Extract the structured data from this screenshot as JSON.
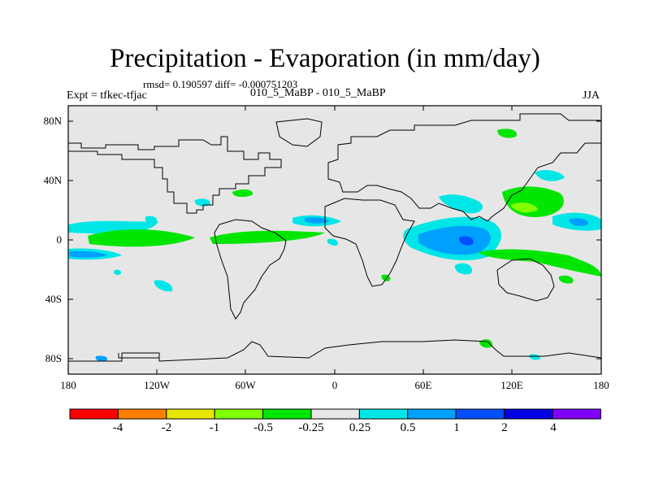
{
  "title": "Precipitation - Evaporation (in mm/day)",
  "stats": "rmsd= 0.190597 diff= -0.000751203",
  "experiment": "Expt = tfkec-tfjac",
  "case": "010_5_MaBP - 010_5_MaBP",
  "season": "JJA",
  "map": {
    "background_color": "#e6e6e6",
    "lat_ticks": [
      "80N",
      "40N",
      "0",
      "40S",
      "80S"
    ],
    "lon_ticks": [
      "180",
      "120W",
      "60W",
      "0",
      "60E",
      "120E",
      "180"
    ]
  },
  "colorbar": {
    "colors": [
      "#ff0000",
      "#ff8000",
      "#e6e600",
      "#80ff00",
      "#00e600",
      "#e6e6e6",
      "#00e6e6",
      "#00a0ff",
      "#0050ff",
      "#0000e6",
      "#8000ff"
    ],
    "labels": [
      "-4",
      "-2",
      "-1",
      "-0.5",
      "-0.25",
      "0.25",
      "0.5",
      "1",
      "2",
      "4"
    ]
  }
}
